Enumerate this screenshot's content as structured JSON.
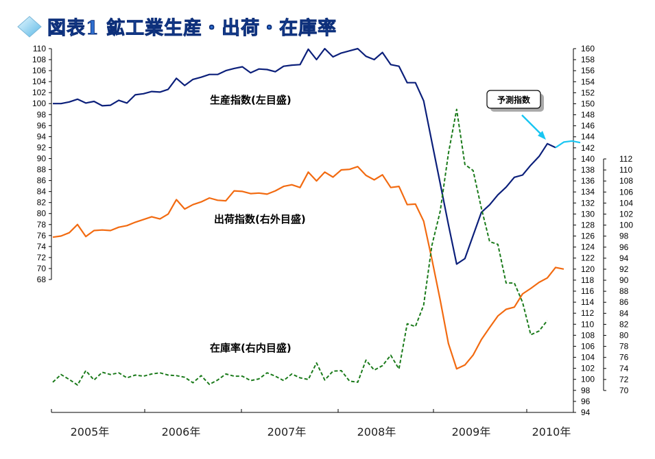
{
  "title": "図表1 鉱工業生産・出荷・在庫率",
  "icon": "diamond-icon",
  "chart_data": {
    "type": "line",
    "x_labels": [
      "2005年",
      "2006年",
      "2007年",
      "2008年",
      "2009年",
      "2010年"
    ],
    "axes": {
      "left": {
        "range": [
          68,
          110
        ],
        "ticks": [
          68,
          70,
          72,
          74,
          76,
          78,
          80,
          82,
          84,
          86,
          88,
          90,
          92,
          94,
          96,
          98,
          100,
          102,
          104,
          106,
          108,
          110
        ]
      },
      "right_outer": {
        "range": [
          94,
          160
        ],
        "ticks": [
          94,
          96,
          98,
          100,
          102,
          104,
          106,
          108,
          110,
          112,
          114,
          116,
          118,
          120,
          122,
          124,
          126,
          128,
          130,
          132,
          134,
          136,
          138,
          140,
          142,
          144,
          146,
          148,
          150,
          152,
          154,
          156,
          158,
          160
        ]
      },
      "right_inner": {
        "range": [
          70,
          112
        ],
        "ticks": [
          70,
          72,
          74,
          76,
          78,
          80,
          82,
          84,
          86,
          88,
          90,
          92,
          94,
          96,
          98,
          100,
          102,
          104,
          106,
          108,
          110,
          112
        ]
      }
    },
    "series": [
      {
        "name": "生産指数(左目盛)",
        "axis": "left",
        "color": "#0b1f7a",
        "style": "solid",
        "values": [
          100.0,
          100.0,
          100.3,
          100.8,
          100.1,
          100.4,
          99.6,
          99.7,
          100.6,
          100.1,
          101.6,
          101.8,
          102.2,
          102.1,
          102.6,
          104.6,
          103.3,
          104.4,
          104.8,
          105.3,
          105.3,
          106.0,
          106.4,
          106.7,
          105.6,
          106.3,
          106.2,
          105.8,
          106.8,
          107.0,
          107.1,
          109.9,
          108.0,
          110.0,
          108.5,
          109.2,
          109.6,
          110.0,
          108.6,
          108.0,
          109.3,
          107.1,
          106.8,
          103.8,
          103.8,
          100.5,
          93.0,
          85.5,
          78.0,
          70.8,
          71.8,
          76.0,
          80.2,
          81.6,
          83.4,
          84.8,
          86.6,
          87.0,
          88.8,
          90.4,
          92.7,
          92.0
        ]
      },
      {
        "name": "予測指数",
        "axis": "left",
        "color": "#19c6f2",
        "style": "solid",
        "values_from_index": 61,
        "values": [
          92.0,
          93.0,
          93.2,
          92.9
        ]
      },
      {
        "name": "出荷指数(右外目盛)",
        "axis": "right_outer",
        "color": "#f26a10",
        "style": "solid",
        "values": [
          125.8,
          126.0,
          126.6,
          128.1,
          125.9,
          127.0,
          127.1,
          127.0,
          127.6,
          127.9,
          128.5,
          129.0,
          129.5,
          129.1,
          130.0,
          132.6,
          130.9,
          131.7,
          132.2,
          132.9,
          132.5,
          132.4,
          134.2,
          134.1,
          133.7,
          133.8,
          133.6,
          134.2,
          135.0,
          135.3,
          134.8,
          137.6,
          136.0,
          137.6,
          136.7,
          138.0,
          138.1,
          138.6,
          137.0,
          136.2,
          137.1,
          134.8,
          135.0,
          131.7,
          131.8,
          128.7,
          121.8,
          114.4,
          106.5,
          101.9,
          102.6,
          104.4,
          107.2,
          109.4,
          111.5,
          112.7,
          113.1,
          115.5,
          116.5,
          117.6,
          118.4,
          120.3,
          120.0
        ]
      },
      {
        "name": "在庫率(右内目盛)",
        "axis": "right_inner",
        "color": "#1a7a1a",
        "style": "dashed",
        "values": [
          71.5,
          72.9,
          72.0,
          71.0,
          73.6,
          71.9,
          73.3,
          72.9,
          73.2,
          72.3,
          72.8,
          72.6,
          73.0,
          73.2,
          72.8,
          72.7,
          72.4,
          71.4,
          72.7,
          71.1,
          71.9,
          73.0,
          72.6,
          72.6,
          71.8,
          72.1,
          73.2,
          72.6,
          71.8,
          73.0,
          72.3,
          72.0,
          75.0,
          71.9,
          73.5,
          73.6,
          71.7,
          71.5,
          75.5,
          73.7,
          74.5,
          76.4,
          73.9,
          82.1,
          81.6,
          85.5,
          96.3,
          102.5,
          113.0,
          121.0,
          111.0,
          109.9,
          103.1,
          97.0,
          96.5,
          89.5,
          89.5,
          86.0,
          80.1,
          80.8,
          82.7
        ]
      }
    ],
    "labels": {
      "production": "生産指数(左目盛)",
      "shipments": "出荷指数(右外目盛)",
      "inventory": "在庫率(右内目盛)",
      "forecast": "予測指数"
    }
  }
}
